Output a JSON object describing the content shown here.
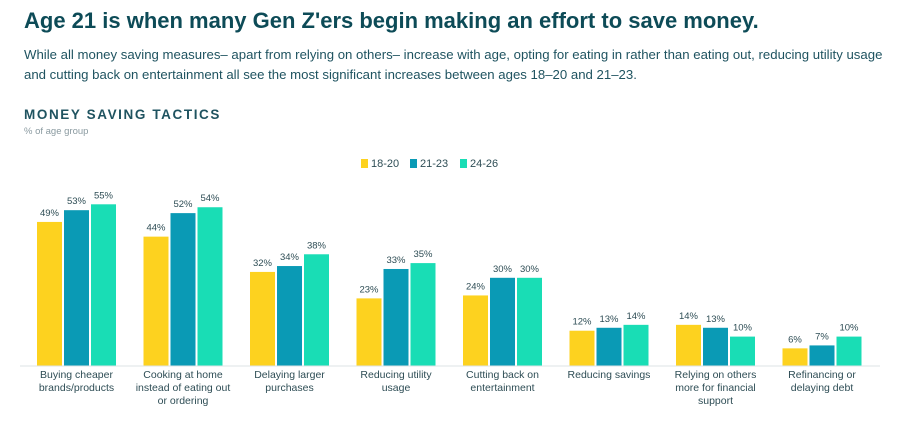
{
  "header": {
    "title": "Age 21 is when many Gen Z'ers begin making an effort to save money.",
    "description": "While all money saving measures– apart from relying on others– increase with age, opting for eating in rather than eating out, reducing utility usage and cutting back on entertainment all see the most significant increases between ages 18–20 and 21–23."
  },
  "chart_title": "MONEY SAVING TACTICS",
  "chart_subtitle": "% of age group",
  "colors": {
    "18-20": "#fdd21f",
    "21-23": "#0a9ab5",
    "24-26": "#19ddb5"
  },
  "chart_data": {
    "type": "bar",
    "categories": [
      [
        "Buying cheaper",
        "brands/products"
      ],
      [
        "Cooking at home",
        "instead of eating out",
        "or ordering"
      ],
      [
        "Delaying larger",
        "purchases"
      ],
      [
        "Reducing utility",
        "usage"
      ],
      [
        "Cutting back on",
        "entertainment"
      ],
      [
        "Reducing savings"
      ],
      [
        "Relying on others",
        "more for financial",
        "support"
      ],
      [
        "Refinancing or",
        "delaying debt"
      ]
    ],
    "series": [
      {
        "name": "18-20",
        "values": [
          49,
          44,
          32,
          23,
          24,
          12,
          14,
          6
        ]
      },
      {
        "name": "21-23",
        "values": [
          53,
          52,
          34,
          33,
          30,
          13,
          13,
          7
        ]
      },
      {
        "name": "24-26",
        "values": [
          55,
          54,
          38,
          35,
          30,
          14,
          10,
          10
        ]
      }
    ],
    "value_suffix": "%",
    "legend_position": "top-center",
    "grid": false
  }
}
